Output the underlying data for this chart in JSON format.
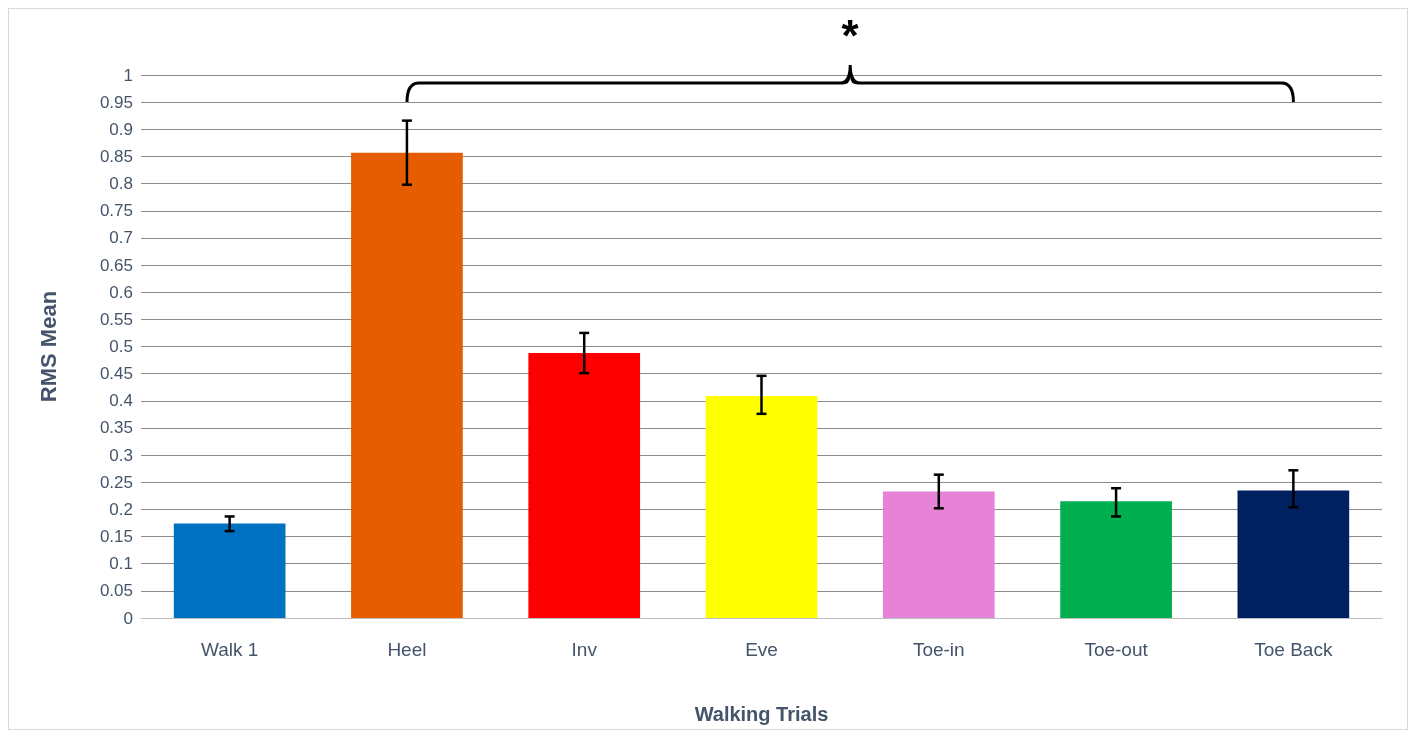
{
  "chart_data": {
    "type": "bar",
    "xlabel": "Walking Trials",
    "ylabel": "RMS Mean",
    "categories": [
      "Walk 1",
      "Heel",
      "Inv",
      "Eve",
      "Toe-in",
      "Toe-out",
      "Toe Back"
    ],
    "values": [
      0.174,
      0.857,
      0.488,
      0.409,
      0.233,
      0.215,
      0.235
    ],
    "colors": [
      "#0070c0",
      "#e65c00",
      "#ff0000",
      "#ffff00",
      "#e683d6",
      "#00b050",
      "#002060"
    ],
    "errors": [
      [
        0.16,
        0.187
      ],
      [
        0.798,
        0.916
      ],
      [
        0.451,
        0.525
      ],
      [
        0.376,
        0.446
      ],
      [
        0.202,
        0.264
      ],
      [
        0.187,
        0.239
      ],
      [
        0.204,
        0.272
      ]
    ],
    "ylim": [
      0,
      1
    ],
    "yticks": [
      0,
      0.05,
      0.1,
      0.15,
      0.2,
      0.25,
      0.3,
      0.35,
      0.4,
      0.45,
      0.5,
      0.55,
      0.6,
      0.65,
      0.7,
      0.75,
      0.8,
      0.85,
      0.9,
      0.95,
      1
    ],
    "grid": "y",
    "annotations": [
      "*"
    ]
  }
}
